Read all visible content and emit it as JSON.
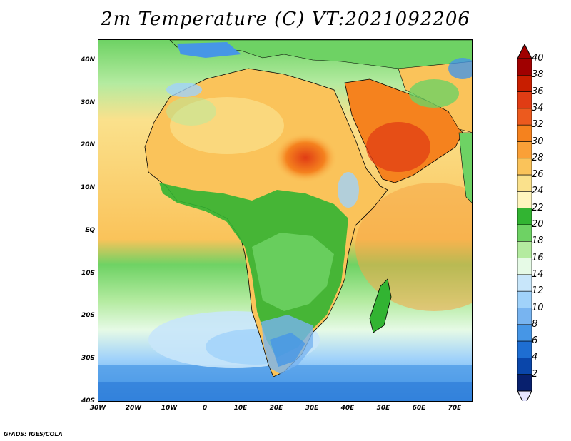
{
  "title": "2m Temperature (C) VT:2021092206",
  "credit": "GrADS: IGES/COLA",
  "map": {
    "extent": {
      "lon_min": -30,
      "lon_max": 75,
      "lat_min": -40,
      "lat_max": 45
    },
    "lat_labels": [
      "40N",
      "30N",
      "20N",
      "10N",
      "EQ",
      "10S",
      "20S",
      "30S",
      "40S"
    ],
    "lat_values": [
      40,
      30,
      20,
      10,
      0,
      -10,
      -20,
      -30,
      -40
    ],
    "lon_labels": [
      "30W",
      "20W",
      "10W",
      "0",
      "10E",
      "20E",
      "30E",
      "40E",
      "50E",
      "60E",
      "70E"
    ],
    "lon_values": [
      -30,
      -20,
      -10,
      0,
      10,
      20,
      30,
      40,
      50,
      60,
      70
    ],
    "ocean_color": "#f2c878"
  },
  "colorbar": {
    "labels": [
      "40",
      "38",
      "36",
      "34",
      "32",
      "30",
      "28",
      "26",
      "24",
      "22",
      "20",
      "18",
      "16",
      "14",
      "12",
      "10",
      "8",
      "6",
      "4",
      "2"
    ],
    "colors": [
      "#a00000",
      "#c81e00",
      "#e03c14",
      "#ec5a1e",
      "#f5821e",
      "#faa037",
      "#fac35a",
      "#fae18c",
      "#fff5be",
      "#32b432",
      "#6ed264",
      "#b4eba0",
      "#e6fae6",
      "#c8e6fa",
      "#a0d2fa",
      "#78b4f0",
      "#4696e6",
      "#1e6ed2",
      "#0a46aa",
      "#08206e"
    ],
    "top_arrow_color": "#a00000",
    "bottom_arrow_color": "#e6e6ff"
  }
}
